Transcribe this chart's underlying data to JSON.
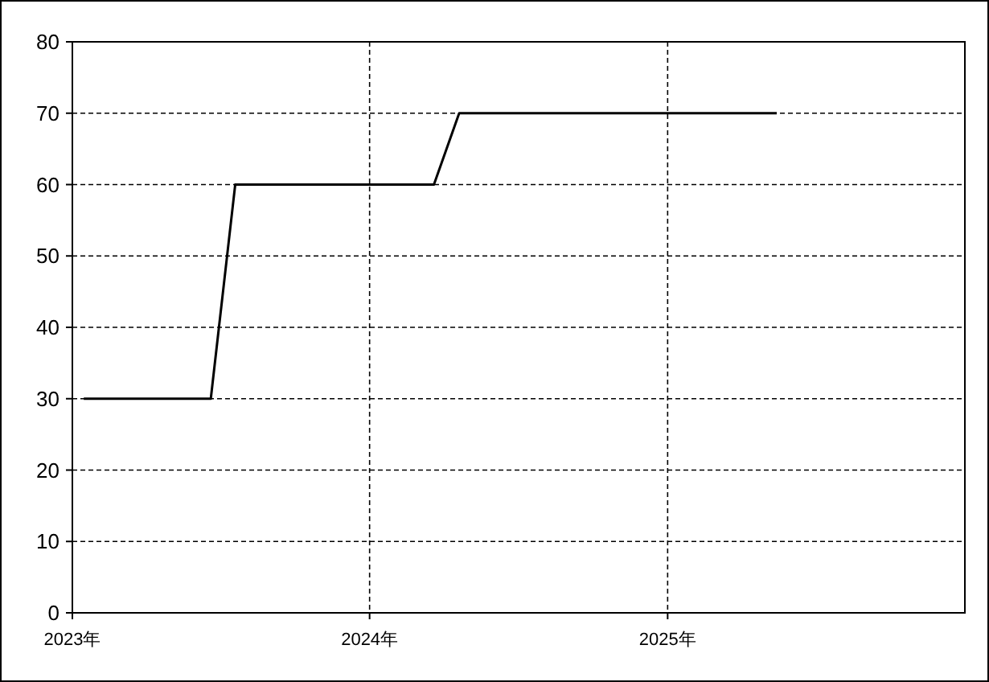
{
  "chart_data": {
    "type": "line",
    "x": [
      "2023-01-15",
      "2023-06-20",
      "2023-07-20",
      "2024-03-20",
      "2024-04-20",
      "2025-05-15"
    ],
    "series": [
      {
        "color": "#000000",
        "values": [
          30,
          30,
          60,
          60,
          70,
          70
        ]
      }
    ],
    "xlim": [
      "2023-01-01",
      "2026-01-01"
    ],
    "xticks": [
      {
        "value": "2023-01-01",
        "label": "2023年"
      },
      {
        "value": "2024-01-01",
        "label": "2024年"
      },
      {
        "value": "2025-01-01",
        "label": "2025年"
      }
    ],
    "ylim": [
      0,
      80
    ],
    "yticks": [
      0,
      10,
      20,
      30,
      40,
      50,
      60,
      70,
      80
    ],
    "grid": true,
    "line_style": "solid",
    "marker": "none"
  }
}
